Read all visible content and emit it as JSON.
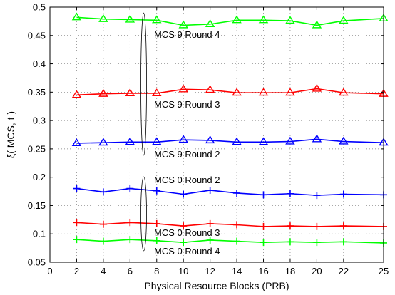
{
  "chart_data": {
    "type": "line",
    "title": "",
    "xlabel": "Physical Resource Blocks (PRB)",
    "ylabel": "ξ( MCS, t )",
    "xlim": [
      0,
      25
    ],
    "ylim": [
      0.05,
      0.5
    ],
    "xticks": [
      "0",
      "2",
      "4",
      "6",
      "8",
      "10",
      "12",
      "14",
      "16",
      "18",
      "20",
      "22",
      "25"
    ],
    "yticks": [
      "0.05",
      "0.1",
      "0.15",
      "0.2",
      "0.25",
      "0.3",
      "0.35",
      "0.4",
      "0.45",
      "0.5"
    ],
    "grid": true,
    "x": [
      2,
      4,
      6,
      8,
      10,
      12,
      14,
      16,
      18,
      20,
      22,
      25
    ],
    "series": [
      {
        "name": "MCS 9 Round 4",
        "color": "#00ff00",
        "marker": "triangle",
        "values": [
          0.482,
          0.479,
          0.478,
          0.477,
          0.468,
          0.47,
          0.477,
          0.477,
          0.476,
          0.468,
          0.476,
          0.48
        ]
      },
      {
        "name": "MCS 9 Round 3",
        "color": "#ff0000",
        "marker": "triangle",
        "values": [
          0.345,
          0.347,
          0.348,
          0.348,
          0.355,
          0.354,
          0.349,
          0.349,
          0.349,
          0.356,
          0.349,
          0.347
        ]
      },
      {
        "name": "MCS 9 Round 2",
        "color": "#0000ff",
        "marker": "triangle",
        "values": [
          0.26,
          0.261,
          0.262,
          0.262,
          0.266,
          0.265,
          0.262,
          0.262,
          0.263,
          0.267,
          0.263,
          0.261
        ]
      },
      {
        "name": "MCS 0 Round 2",
        "color": "#0000ff",
        "marker": "plus",
        "values": [
          0.18,
          0.174,
          0.18,
          0.176,
          0.17,
          0.177,
          0.172,
          0.169,
          0.171,
          0.168,
          0.17,
          0.169
        ]
      },
      {
        "name": "MCS 0 Round 3",
        "color": "#ff0000",
        "marker": "plus",
        "values": [
          0.12,
          0.117,
          0.12,
          0.118,
          0.114,
          0.118,
          0.116,
          0.113,
          0.114,
          0.113,
          0.114,
          0.113
        ]
      },
      {
        "name": "MCS 0 Round 4",
        "color": "#00ff00",
        "marker": "plus",
        "values": [
          0.09,
          0.087,
          0.09,
          0.088,
          0.085,
          0.089,
          0.087,
          0.085,
          0.086,
          0.085,
          0.086,
          0.084
        ]
      }
    ],
    "annotations": [
      "MCS 9 Round 4",
      "MCS 9 Round 3",
      "MCS 9 Round 2",
      "MCS 0 Round 2",
      "MCS 0 Round 3",
      "MCS 0 Round 4"
    ]
  }
}
